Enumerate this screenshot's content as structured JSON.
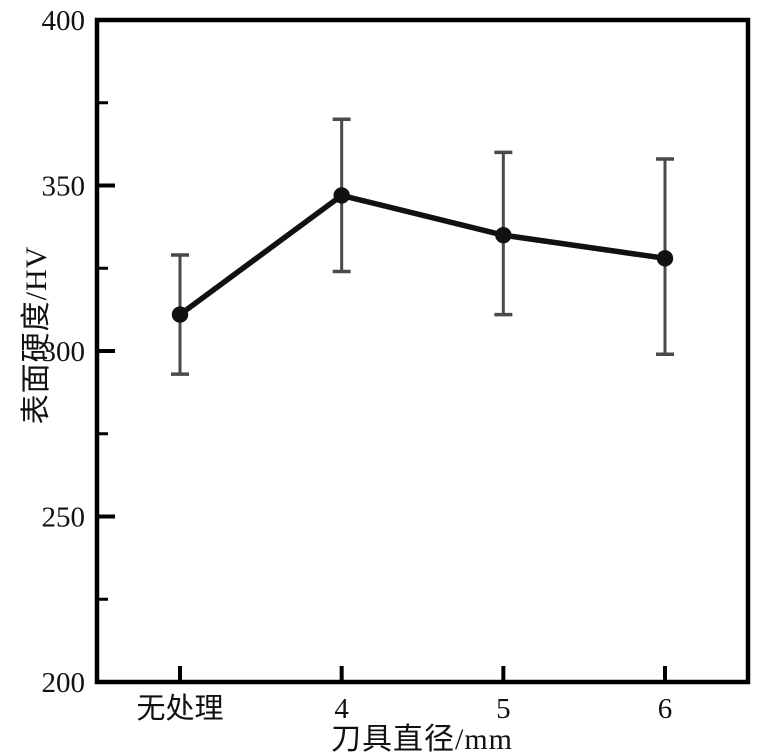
{
  "chart_data": {
    "type": "line",
    "title": "",
    "xlabel": "刀具直径/mm",
    "ylabel": "表面硬度/HV",
    "categories": [
      "无处理",
      "4",
      "5",
      "6"
    ],
    "series": [
      {
        "name": "表面硬度",
        "values": [
          311,
          347,
          335,
          328
        ],
        "error_plus": [
          18,
          23,
          25,
          30
        ],
        "error_minus": [
          18,
          23,
          24,
          29
        ]
      }
    ],
    "ylim": [
      200,
      400
    ],
    "y_major_ticks": [
      200,
      250,
      300,
      350,
      400
    ],
    "y_minor_ticks": [
      225,
      275,
      325,
      375
    ],
    "grid": "off",
    "legend": "none",
    "marker": "filled-circle",
    "line_color": "#111111",
    "marker_color": "#111111",
    "error_bar_color": "#4a4a4a",
    "axis_color": "#000000",
    "background": "#ffffff"
  }
}
